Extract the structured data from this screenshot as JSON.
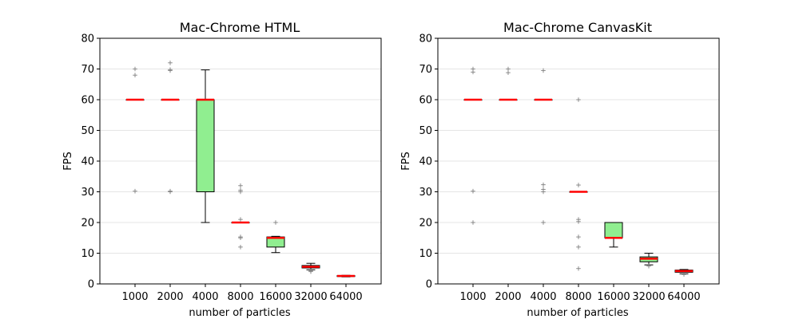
{
  "chart_data": [
    {
      "type": "boxplot",
      "title": "Mac-Chrome HTML",
      "xlabel": "number of particles",
      "ylabel": "FPS",
      "ylim": [
        0,
        80
      ],
      "yticks": [
        0,
        10,
        20,
        30,
        40,
        50,
        60,
        70,
        80
      ],
      "grid": "horizontal",
      "categories": [
        "1000",
        "2000",
        "4000",
        "8000",
        "16000",
        "32000",
        "64000"
      ],
      "boxes": [
        {
          "q1": 60,
          "median": 60,
          "q3": 60,
          "whisker_low": 60,
          "whisker_high": 60,
          "outliers": [
            70,
            68,
            30.2
          ]
        },
        {
          "q1": 60,
          "median": 60,
          "q3": 60,
          "whisker_low": 60,
          "whisker_high": 60,
          "outliers": [
            72,
            69.5,
            69.8,
            30.2,
            30
          ]
        },
        {
          "q1": 30,
          "median": 60,
          "q3": 60,
          "whisker_low": 20,
          "whisker_high": 69.7,
          "outliers": []
        },
        {
          "q1": 20,
          "median": 20,
          "q3": 20,
          "whisker_low": 20,
          "whisker_high": 20,
          "outliers": [
            32,
            30.5,
            30,
            21,
            15.3,
            15,
            12
          ]
        },
        {
          "q1": 12,
          "median": 15,
          "q3": 15.3,
          "whisker_low": 10.2,
          "whisker_high": 15.5,
          "outliers": [
            20
          ]
        },
        {
          "q1": 5.2,
          "median": 5.6,
          "q3": 6,
          "whisker_low": 4.6,
          "whisker_high": 6.7,
          "outliers": [
            4.2,
            4
          ]
        },
        {
          "q1": 2.4,
          "median": 2.6,
          "q3": 2.7,
          "whisker_low": 2.3,
          "whisker_high": 2.8,
          "outliers": []
        }
      ]
    },
    {
      "type": "boxplot",
      "title": "Mac-Chrome CanvasKit",
      "xlabel": "number of particles",
      "ylabel": "FPS",
      "ylim": [
        0,
        80
      ],
      "yticks": [
        0,
        10,
        20,
        30,
        40,
        50,
        60,
        70,
        80
      ],
      "grid": "horizontal",
      "categories": [
        "1000",
        "2000",
        "4000",
        "8000",
        "16000",
        "32000",
        "64000"
      ],
      "boxes": [
        {
          "q1": 60,
          "median": 60,
          "q3": 60,
          "whisker_low": 60,
          "whisker_high": 60,
          "outliers": [
            70,
            69,
            30.2,
            20
          ]
        },
        {
          "q1": 60,
          "median": 60,
          "q3": 60,
          "whisker_low": 60,
          "whisker_high": 60,
          "outliers": [
            70,
            68.8
          ]
        },
        {
          "q1": 60,
          "median": 60,
          "q3": 60,
          "whisker_low": 60,
          "whisker_high": 60,
          "outliers": [
            69.5,
            32.3,
            30.8,
            30,
            20
          ]
        },
        {
          "q1": 30,
          "median": 30,
          "q3": 30,
          "whisker_low": 30,
          "whisker_high": 30,
          "outliers": [
            60,
            32.2,
            21,
            20.3,
            15.3,
            12,
            5
          ]
        },
        {
          "q1": 15,
          "median": 15,
          "q3": 20,
          "whisker_low": 12,
          "whisker_high": 20,
          "outliers": []
        },
        {
          "q1": 7.2,
          "median": 8.2,
          "q3": 8.8,
          "whisker_low": 6.2,
          "whisker_high": 10,
          "outliers": [
            5.8
          ]
        },
        {
          "q1": 3.8,
          "median": 4.2,
          "q3": 4.5,
          "whisker_low": 3.3,
          "whisker_high": 4.7,
          "outliers": [
            3.1
          ]
        }
      ]
    }
  ],
  "colors": {
    "box_fill": "#90ee90",
    "median": "#ff0000",
    "outlier": "#7f7f7f",
    "grid": "#dcdcdc"
  }
}
